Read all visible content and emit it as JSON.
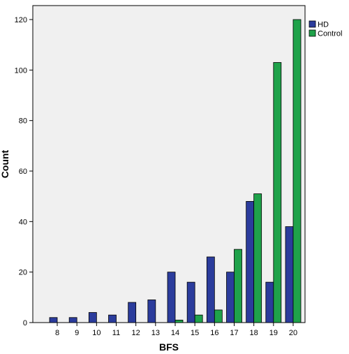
{
  "chart_data": {
    "type": "bar",
    "title": "",
    "xlabel": "BFS",
    "ylabel": "Count",
    "categories": [
      "8",
      "9",
      "10",
      "11",
      "12",
      "13",
      "14",
      "15",
      "16",
      "17",
      "18",
      "19",
      "20"
    ],
    "series": [
      {
        "name": "HD",
        "color": "#2B3C9C",
        "values": [
          2,
          2,
          4,
          3,
          8,
          9,
          20,
          16,
          26,
          20,
          48,
          16,
          38
        ]
      },
      {
        "name": "Control",
        "color": "#1FA24A",
        "values": [
          0,
          0,
          0,
          0,
          0,
          0,
          1,
          3,
          5,
          29,
          51,
          103,
          120
        ]
      }
    ],
    "ylim": [
      0,
      120
    ],
    "yticks": [
      0,
      20,
      40,
      60,
      80,
      100,
      120
    ],
    "grid": false,
    "legend_position": "top-right",
    "plot_background": "#F0F0F0"
  }
}
